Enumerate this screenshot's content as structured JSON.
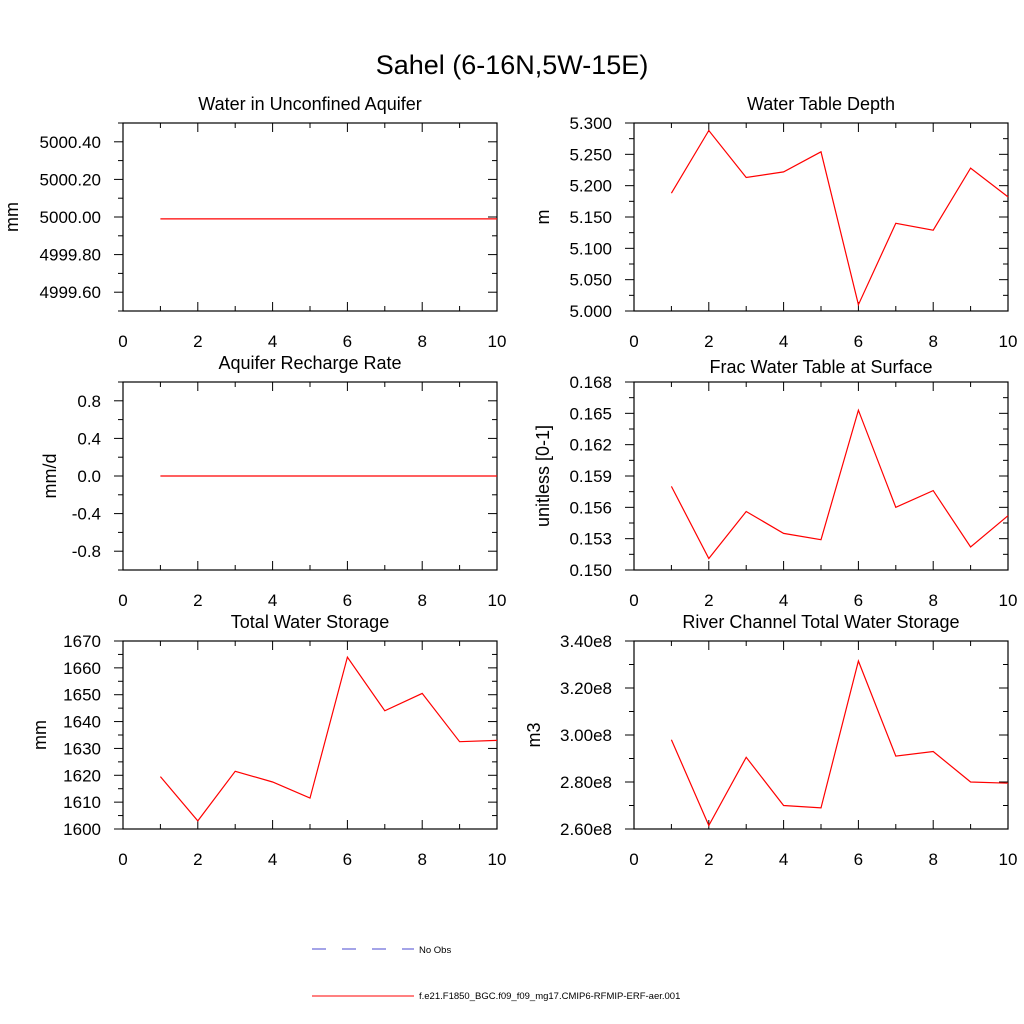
{
  "figure": {
    "title": "Sahel (6-16N,5W-15E)",
    "line_color": "#ff0000",
    "obs_line_color": "#4a4ad0"
  },
  "legend": [
    {
      "label": "No Obs",
      "style": "dashed",
      "color": "#4a4ad0"
    },
    {
      "label": "f.e21.F1850_BGC.f09_f09_mg17.CMIP6-RFMIP-ERF-aer.001",
      "style": "solid",
      "color": "#ff0000"
    }
  ],
  "chart_data": [
    {
      "type": "line",
      "title": "Water in Unconfined Aquifer",
      "ylabel": "mm",
      "xlim": [
        0,
        10
      ],
      "ylim": [
        4999.5,
        5000.5
      ],
      "xticks": [
        0,
        2,
        4,
        6,
        8,
        10
      ],
      "yticks": [
        4999.6,
        4999.8,
        5000.0,
        5000.2,
        5000.4
      ],
      "ytick_labels": [
        "4999.60",
        "4999.80",
        "5000.00",
        "5000.20",
        "5000.40"
      ],
      "x": [
        1,
        2,
        3,
        4,
        5,
        6,
        7,
        8,
        9,
        10
      ],
      "values": [
        4999.99,
        4999.99,
        4999.99,
        4999.99,
        4999.99,
        4999.99,
        4999.99,
        4999.99,
        4999.99,
        4999.99
      ]
    },
    {
      "type": "line",
      "title": "Water Table Depth",
      "ylabel": "m",
      "xlim": [
        0,
        10
      ],
      "ylim": [
        5.0,
        5.3
      ],
      "xticks": [
        0,
        2,
        4,
        6,
        8,
        10
      ],
      "yticks": [
        5.0,
        5.05,
        5.1,
        5.15,
        5.2,
        5.25,
        5.3
      ],
      "ytick_labels": [
        "5.000",
        "5.050",
        "5.100",
        "5.150",
        "5.200",
        "5.250",
        "5.300"
      ],
      "x": [
        1,
        2,
        3,
        4,
        5,
        6,
        7,
        8,
        9,
        10
      ],
      "values": [
        5.188,
        5.288,
        5.213,
        5.222,
        5.254,
        5.01,
        5.14,
        5.129,
        5.228,
        5.182
      ]
    },
    {
      "type": "line",
      "title": "Aquifer Recharge Rate",
      "ylabel": "mm/d",
      "xlim": [
        0,
        10
      ],
      "ylim": [
        -1.0,
        1.0
      ],
      "xticks": [
        0,
        2,
        4,
        6,
        8,
        10
      ],
      "yticks": [
        -0.8,
        -0.4,
        0.0,
        0.4,
        0.8
      ],
      "ytick_labels": [
        "-0.8",
        "-0.4",
        "0.0",
        "0.4",
        "0.8"
      ],
      "x": [
        1,
        2,
        3,
        4,
        5,
        6,
        7,
        8,
        9,
        10
      ],
      "values": [
        0,
        0,
        0,
        0,
        0,
        0,
        0,
        0,
        0,
        0
      ]
    },
    {
      "type": "line",
      "title": "Frac Water Table at Surface",
      "ylabel": "unitless [0-1]",
      "xlim": [
        0,
        10
      ],
      "ylim": [
        0.15,
        0.168
      ],
      "xticks": [
        0,
        2,
        4,
        6,
        8,
        10
      ],
      "yticks": [
        0.15,
        0.153,
        0.156,
        0.159,
        0.162,
        0.165,
        0.168
      ],
      "ytick_labels": [
        "0.150",
        "0.153",
        "0.156",
        "0.159",
        "0.162",
        "0.165",
        "0.168"
      ],
      "x": [
        1,
        2,
        3,
        4,
        5,
        6,
        7,
        8,
        9,
        10
      ],
      "values": [
        0.158,
        0.1511,
        0.1556,
        0.1535,
        0.1529,
        0.1653,
        0.156,
        0.1576,
        0.1522,
        0.1552
      ]
    },
    {
      "type": "line",
      "title": "Total Water Storage",
      "ylabel": "mm",
      "xlim": [
        0,
        10
      ],
      "ylim": [
        1600,
        1670
      ],
      "xticks": [
        0,
        2,
        4,
        6,
        8,
        10
      ],
      "yticks": [
        1600,
        1610,
        1620,
        1630,
        1640,
        1650,
        1660,
        1670
      ],
      "ytick_labels": [
        "1600",
        "1610",
        "1620",
        "1630",
        "1640",
        "1650",
        "1660",
        "1670"
      ],
      "x": [
        1,
        2,
        3,
        4,
        5,
        6,
        7,
        8,
        9,
        10
      ],
      "values": [
        1619.5,
        1603,
        1621.5,
        1617.5,
        1611.5,
        1664,
        1644,
        1650.5,
        1632.5,
        1633
      ]
    },
    {
      "type": "line",
      "title": "River Channel Total Water Storage",
      "ylabel": "m3",
      "xlim": [
        0,
        10
      ],
      "ylim": [
        260000000,
        340000000
      ],
      "xticks": [
        0,
        2,
        4,
        6,
        8,
        10
      ],
      "yticks": [
        260000000,
        280000000,
        300000000,
        320000000,
        340000000
      ],
      "ytick_labels": [
        "2.60e8",
        "2.80e8",
        "3.00e8",
        "3.20e8",
        "3.40e8"
      ],
      "x": [
        1,
        2,
        3,
        4,
        5,
        6,
        7,
        8,
        9,
        10
      ],
      "values": [
        298000000,
        261500000,
        290500000,
        270000000,
        269000000,
        331500000,
        291000000,
        293000000,
        280000000,
        279500000
      ]
    }
  ]
}
